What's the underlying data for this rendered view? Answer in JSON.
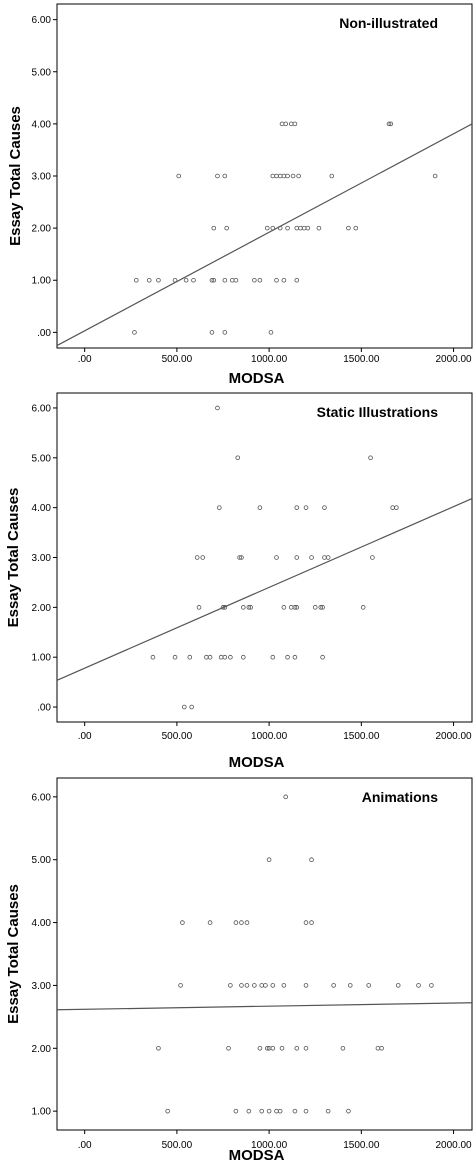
{
  "chart_data": [
    {
      "type": "scatter",
      "title": "Non-illustrated",
      "xlabel": "MODSA",
      "ylabel": "Essay Total Causes",
      "xlim": [
        -150,
        2100
      ],
      "ylim": [
        -0.3,
        6.3
      ],
      "x_ticks": [
        ".00",
        "500.00",
        "1000.00",
        "1500.00",
        "2000.00"
      ],
      "y_ticks": [
        ".00",
        "1.00",
        "2.00",
        "3.00",
        "4.00",
        "5.00",
        "6.00"
      ],
      "fit_line": {
        "intercept": 0.03,
        "slope": 0.00189
      },
      "points": [
        {
          "x": 270,
          "y": 0
        },
        {
          "x": 690,
          "y": 0
        },
        {
          "x": 760,
          "y": 0
        },
        {
          "x": 1010,
          "y": 0
        },
        {
          "x": 280,
          "y": 1
        },
        {
          "x": 350,
          "y": 1
        },
        {
          "x": 400,
          "y": 1
        },
        {
          "x": 490,
          "y": 1
        },
        {
          "x": 550,
          "y": 1
        },
        {
          "x": 590,
          "y": 1
        },
        {
          "x": 690,
          "y": 1
        },
        {
          "x": 700,
          "y": 1
        },
        {
          "x": 760,
          "y": 1
        },
        {
          "x": 800,
          "y": 1
        },
        {
          "x": 820,
          "y": 1
        },
        {
          "x": 920,
          "y": 1
        },
        {
          "x": 950,
          "y": 1
        },
        {
          "x": 1040,
          "y": 1
        },
        {
          "x": 1080,
          "y": 1
        },
        {
          "x": 1150,
          "y": 1
        },
        {
          "x": 700,
          "y": 2
        },
        {
          "x": 770,
          "y": 2
        },
        {
          "x": 990,
          "y": 2
        },
        {
          "x": 1020,
          "y": 2
        },
        {
          "x": 1060,
          "y": 2
        },
        {
          "x": 1100,
          "y": 2
        },
        {
          "x": 1150,
          "y": 2
        },
        {
          "x": 1170,
          "y": 2
        },
        {
          "x": 1190,
          "y": 2
        },
        {
          "x": 1210,
          "y": 2
        },
        {
          "x": 1270,
          "y": 2
        },
        {
          "x": 1430,
          "y": 2
        },
        {
          "x": 1470,
          "y": 2
        },
        {
          "x": 510,
          "y": 3
        },
        {
          "x": 720,
          "y": 3
        },
        {
          "x": 760,
          "y": 3
        },
        {
          "x": 1020,
          "y": 3
        },
        {
          "x": 1040,
          "y": 3
        },
        {
          "x": 1060,
          "y": 3
        },
        {
          "x": 1080,
          "y": 3
        },
        {
          "x": 1100,
          "y": 3
        },
        {
          "x": 1130,
          "y": 3
        },
        {
          "x": 1160,
          "y": 3
        },
        {
          "x": 1340,
          "y": 3
        },
        {
          "x": 1900,
          "y": 3
        },
        {
          "x": 1070,
          "y": 4
        },
        {
          "x": 1090,
          "y": 4
        },
        {
          "x": 1120,
          "y": 4
        },
        {
          "x": 1140,
          "y": 4
        },
        {
          "x": 1650,
          "y": 4
        },
        {
          "x": 1660,
          "y": 4
        }
      ]
    },
    {
      "type": "scatter",
      "title": "Static Illustrations",
      "xlabel": "MODSA",
      "ylabel": "Essay Total Causes",
      "xlim": [
        -150,
        2100
      ],
      "ylim": [
        -0.3,
        6.3
      ],
      "x_ticks": [
        ".00",
        "500.00",
        "1000.00",
        "1500.00",
        "2000.00"
      ],
      "y_ticks": [
        ".00",
        "1.00",
        "2.00",
        "3.00",
        "4.00",
        "5.00",
        "6.00"
      ],
      "fit_line": {
        "intercept": 0.78,
        "slope": 0.00162
      },
      "points": [
        {
          "x": 540,
          "y": 0
        },
        {
          "x": 580,
          "y": 0
        },
        {
          "x": 370,
          "y": 1
        },
        {
          "x": 490,
          "y": 1
        },
        {
          "x": 570,
          "y": 1
        },
        {
          "x": 660,
          "y": 1
        },
        {
          "x": 680,
          "y": 1
        },
        {
          "x": 740,
          "y": 1
        },
        {
          "x": 760,
          "y": 1
        },
        {
          "x": 790,
          "y": 1
        },
        {
          "x": 860,
          "y": 1
        },
        {
          "x": 1020,
          "y": 1
        },
        {
          "x": 1100,
          "y": 1
        },
        {
          "x": 1140,
          "y": 1
        },
        {
          "x": 1290,
          "y": 1
        },
        {
          "x": 620,
          "y": 2
        },
        {
          "x": 750,
          "y": 2
        },
        {
          "x": 760,
          "y": 2
        },
        {
          "x": 860,
          "y": 2
        },
        {
          "x": 890,
          "y": 2
        },
        {
          "x": 900,
          "y": 2
        },
        {
          "x": 1080,
          "y": 2
        },
        {
          "x": 1120,
          "y": 2
        },
        {
          "x": 1140,
          "y": 2
        },
        {
          "x": 1150,
          "y": 2
        },
        {
          "x": 1250,
          "y": 2
        },
        {
          "x": 1280,
          "y": 2
        },
        {
          "x": 1290,
          "y": 2
        },
        {
          "x": 1510,
          "y": 2
        },
        {
          "x": 610,
          "y": 3
        },
        {
          "x": 640,
          "y": 3
        },
        {
          "x": 840,
          "y": 3
        },
        {
          "x": 850,
          "y": 3
        },
        {
          "x": 1040,
          "y": 3
        },
        {
          "x": 1150,
          "y": 3
        },
        {
          "x": 1230,
          "y": 3
        },
        {
          "x": 1300,
          "y": 3
        },
        {
          "x": 1320,
          "y": 3
        },
        {
          "x": 1560,
          "y": 3
        },
        {
          "x": 730,
          "y": 4
        },
        {
          "x": 950,
          "y": 4
        },
        {
          "x": 1150,
          "y": 4
        },
        {
          "x": 1200,
          "y": 4
        },
        {
          "x": 1300,
          "y": 4
        },
        {
          "x": 1670,
          "y": 4
        },
        {
          "x": 1690,
          "y": 4
        },
        {
          "x": 830,
          "y": 5
        },
        {
          "x": 1550,
          "y": 5
        },
        {
          "x": 720,
          "y": 6
        }
      ]
    },
    {
      "type": "scatter",
      "title": "Animations",
      "xlabel": "MODSA",
      "ylabel": "Essay Total Causes",
      "xlim": [
        -150,
        2100
      ],
      "ylim": [
        0.7,
        6.3
      ],
      "x_ticks": [
        ".00",
        "500.00",
        "1000.00",
        "1500.00",
        "2000.00"
      ],
      "y_ticks": [
        "1.00",
        "2.00",
        "3.00",
        "4.00",
        "5.00",
        "6.00"
      ],
      "fit_line": {
        "intercept": 2.62,
        "slope": 5e-05
      },
      "points": [
        {
          "x": 450,
          "y": 1
        },
        {
          "x": 820,
          "y": 1
        },
        {
          "x": 890,
          "y": 1
        },
        {
          "x": 960,
          "y": 1
        },
        {
          "x": 1000,
          "y": 1
        },
        {
          "x": 1040,
          "y": 1
        },
        {
          "x": 1060,
          "y": 1
        },
        {
          "x": 1140,
          "y": 1
        },
        {
          "x": 1200,
          "y": 1
        },
        {
          "x": 1320,
          "y": 1
        },
        {
          "x": 1430,
          "y": 1
        },
        {
          "x": 400,
          "y": 2
        },
        {
          "x": 780,
          "y": 2
        },
        {
          "x": 950,
          "y": 2
        },
        {
          "x": 990,
          "y": 2
        },
        {
          "x": 1000,
          "y": 2
        },
        {
          "x": 1020,
          "y": 2
        },
        {
          "x": 1070,
          "y": 2
        },
        {
          "x": 1150,
          "y": 2
        },
        {
          "x": 1200,
          "y": 2
        },
        {
          "x": 1400,
          "y": 2
        },
        {
          "x": 1590,
          "y": 2
        },
        {
          "x": 1610,
          "y": 2
        },
        {
          "x": 520,
          "y": 3
        },
        {
          "x": 790,
          "y": 3
        },
        {
          "x": 850,
          "y": 3
        },
        {
          "x": 880,
          "y": 3
        },
        {
          "x": 920,
          "y": 3
        },
        {
          "x": 960,
          "y": 3
        },
        {
          "x": 980,
          "y": 3
        },
        {
          "x": 1020,
          "y": 3
        },
        {
          "x": 1080,
          "y": 3
        },
        {
          "x": 1200,
          "y": 3
        },
        {
          "x": 1350,
          "y": 3
        },
        {
          "x": 1440,
          "y": 3
        },
        {
          "x": 1540,
          "y": 3
        },
        {
          "x": 1700,
          "y": 3
        },
        {
          "x": 1810,
          "y": 3
        },
        {
          "x": 1880,
          "y": 3
        },
        {
          "x": 530,
          "y": 4
        },
        {
          "x": 680,
          "y": 4
        },
        {
          "x": 820,
          "y": 4
        },
        {
          "x": 850,
          "y": 4
        },
        {
          "x": 880,
          "y": 4
        },
        {
          "x": 1200,
          "y": 4
        },
        {
          "x": 1230,
          "y": 4
        },
        {
          "x": 1000,
          "y": 5
        },
        {
          "x": 1230,
          "y": 5
        },
        {
          "x": 1090,
          "y": 6
        }
      ]
    }
  ]
}
